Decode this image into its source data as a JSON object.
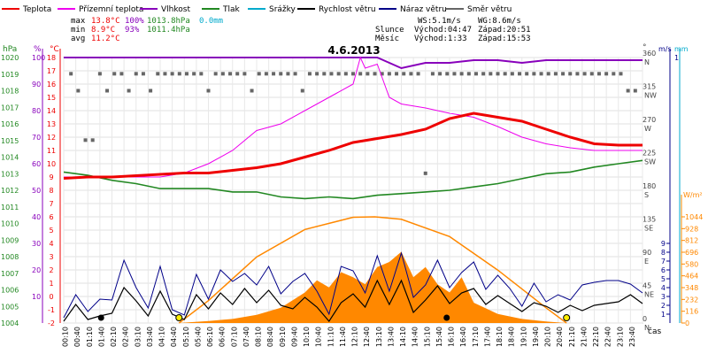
{
  "chart_data": {
    "type": "line",
    "title": "4.6.2013",
    "legend": [
      {
        "label": "Teplota",
        "color": "#ee0000"
      },
      {
        "label": "Přízemní teplota",
        "color": "#ee00ee"
      },
      {
        "label": "Vlhkost",
        "color": "#8800bb"
      },
      {
        "label": "Tlak",
        "color": "#228822"
      },
      {
        "label": "Srážky",
        "color": "#00aacc"
      },
      {
        "label": "Rychlost větru",
        "color": "#000000"
      },
      {
        "label": "Náraz větru",
        "color": "#000088"
      },
      {
        "label": "Směr větru",
        "color": "#666666"
      }
    ],
    "stats": {
      "max": {
        "label": "max",
        "temp": "13.8°C",
        "hum": "100%",
        "press": "1013.8hPa",
        "rain": "0.0mm"
      },
      "min": {
        "label": "min",
        "temp": "8.9°C",
        "hum": "93%",
        "press": "1011.4hPa"
      },
      "avg": {
        "label": "avg",
        "temp": "11.2°C"
      }
    },
    "wind_info": {
      "ws": "WS:5.1m/s",
      "wg": "WG:8.6m/s"
    },
    "sun": {
      "label": "Slunce",
      "rise": "Východ:04:47",
      "set": "Západ:20:51"
    },
    "moon": {
      "label": "Měsíc",
      "rise": "Východ:1:33",
      "set": "Západ:15:53"
    },
    "axes": {
      "hpa": {
        "label": "hPa",
        "ticks": [
          "1004",
          "1005",
          "1006",
          "1007",
          "1008",
          "1009",
          "1010",
          "1011",
          "1012",
          "1013",
          "1014",
          "1015",
          "1016",
          "1017",
          "1018",
          "1019",
          "1020"
        ]
      },
      "pct": {
        "label": "%",
        "ticks": [
          "10",
          "20",
          "30",
          "40",
          "50",
          "60",
          "70",
          "80",
          "90",
          "100"
        ]
      },
      "temp": {
        "label": "°C",
        "ticks": [
          "-2",
          "-1",
          "0",
          "1",
          "2",
          "3",
          "4",
          "5",
          "6",
          "7",
          "8",
          "9",
          "10",
          "11",
          "12",
          "13",
          "14",
          "15",
          "16",
          "17",
          "18"
        ]
      },
      "dir": {
        "label": "°",
        "ticks": [
          [
            "360",
            "N"
          ],
          [
            "315",
            "NW"
          ],
          [
            "270",
            "W"
          ],
          [
            "225",
            "SW"
          ],
          [
            "180",
            "S"
          ],
          [
            "135",
            "SE"
          ],
          [
            "90",
            "E"
          ],
          [
            "45",
            "NE"
          ],
          [
            "0",
            "N"
          ]
        ]
      },
      "ms": {
        "label": "m/s",
        "ticks": [
          "0",
          "1",
          "2",
          "3",
          "4",
          "5",
          "6",
          "7",
          "8",
          "9"
        ],
        "top": "1"
      },
      "mm": {
        "label": "mm"
      },
      "wm2": {
        "label": "W/m²",
        "ticks": [
          "0",
          "116",
          "232",
          "348",
          "464",
          "580",
          "696",
          "812",
          "928",
          "1044"
        ]
      },
      "x_label": "čas",
      "x_ticks": [
        "00:10",
        "00:40",
        "01:10",
        "01:40",
        "02:10",
        "02:40",
        "03:10",
        "03:40",
        "04:10",
        "04:40",
        "05:10",
        "05:40",
        "06:10",
        "06:40",
        "07:10",
        "07:40",
        "08:10",
        "08:40",
        "09:10",
        "09:40",
        "10:10",
        "10:40",
        "11:10",
        "11:40",
        "12:10",
        "12:40",
        "13:10",
        "13:40",
        "14:10",
        "14:40",
        "15:10",
        "15:40",
        "16:10",
        "16:40",
        "17:10",
        "17:40",
        "18:10",
        "18:40",
        "19:10",
        "19:40",
        "20:10",
        "20:40",
        "21:10",
        "21:40",
        "22:10",
        "22:40",
        "23:10",
        "23:40"
      ]
    },
    "series": {
      "temperature": {
        "unit": "°C",
        "x": [
          0,
          1,
          2,
          3,
          4,
          5,
          6,
          7,
          8,
          9,
          10,
          11,
          12,
          13,
          14,
          15,
          16,
          17,
          18,
          19,
          20,
          21,
          22,
          23,
          24
        ],
        "y": [
          8.9,
          9.0,
          9.0,
          9.1,
          9.2,
          9.3,
          9.3,
          9.5,
          9.7,
          10.0,
          10.5,
          11.0,
          11.6,
          11.9,
          12.2,
          12.6,
          13.4,
          13.8,
          13.5,
          13.2,
          12.6,
          12.0,
          11.5,
          11.4,
          11.4
        ]
      },
      "ground_temperature": {
        "unit": "°C",
        "x": [
          0,
          2,
          4,
          5,
          6,
          7,
          8,
          9,
          10,
          11,
          12,
          12.3,
          12.5,
          13,
          13.5,
          14,
          15,
          16,
          17,
          18,
          19,
          20,
          21,
          22,
          23,
          24
        ],
        "y": [
          9.0,
          9.0,
          9.0,
          9.3,
          10.0,
          11.0,
          12.5,
          13.0,
          14.0,
          15.0,
          16.0,
          18.0,
          17.2,
          17.5,
          15.0,
          14.5,
          14.2,
          13.8,
          13.5,
          12.8,
          12.0,
          11.5,
          11.2,
          11.0,
          11.0,
          11.0
        ]
      },
      "humidity": {
        "unit": "%",
        "x": [
          0,
          6,
          12,
          13,
          14,
          15,
          16,
          17,
          18,
          19,
          20,
          21,
          22,
          23,
          24
        ],
        "y": [
          100,
          100,
          100,
          100,
          96,
          98,
          98,
          99,
          99,
          98,
          99,
          99,
          99,
          99,
          99
        ]
      },
      "pressure": {
        "unit": "hPa",
        "x": [
          0,
          1,
          2,
          3,
          4,
          5,
          6,
          7,
          8,
          9,
          10,
          11,
          12,
          13,
          14,
          15,
          16,
          17,
          18,
          19,
          20,
          21,
          22,
          23,
          24
        ],
        "y": [
          1013.1,
          1012.9,
          1012.6,
          1012.4,
          1012.1,
          1012.1,
          1012.1,
          1011.9,
          1011.9,
          1011.6,
          1011.5,
          1011.6,
          1011.5,
          1011.7,
          1011.8,
          1011.9,
          1012.0,
          1012.2,
          1012.4,
          1012.7,
          1013.0,
          1013.1,
          1013.4,
          1013.6,
          1013.8
        ]
      },
      "wind_speed": {
        "unit": "m/s",
        "x": [
          0,
          0.5,
          1,
          1.5,
          2,
          2.5,
          3,
          3.5,
          4,
          4.5,
          5,
          5.5,
          6,
          6.5,
          7,
          7.5,
          8,
          8.5,
          9,
          9.5,
          10,
          10.5,
          11,
          11.5,
          12,
          12.5,
          13,
          13.5,
          14,
          14.5,
          15,
          15.5,
          16,
          16.5,
          17,
          17.5,
          18,
          18.5,
          19,
          19.5,
          20,
          20.5,
          21,
          21.5,
          22,
          22.5,
          23,
          23.5,
          24
        ],
        "y": [
          0.2,
          2.1,
          0.4,
          0.8,
          1.1,
          4.0,
          2.5,
          0.8,
          3.6,
          1.0,
          0.4,
          3.2,
          1.6,
          3.4,
          2.1,
          3.9,
          2.3,
          3.7,
          2.0,
          1.6,
          2.9,
          1.8,
          0.2,
          2.3,
          3.3,
          1.8,
          4.8,
          2.1,
          4.8,
          1.2,
          2.6,
          4.2,
          2.2,
          3.4,
          3.9,
          2.1,
          3.1,
          2.2,
          1.3,
          2.3,
          1.9,
          1.2,
          2.0,
          1.4,
          2.0,
          2.2,
          2.4,
          3.2,
          2.2
        ]
      },
      "wind_gust": {
        "unit": "m/s",
        "x": [
          0,
          0.5,
          1,
          1.5,
          2,
          2.5,
          3,
          3.5,
          4,
          4.5,
          5,
          5.5,
          6,
          6.5,
          7,
          7.5,
          8,
          8.5,
          9,
          9.5,
          10,
          10.5,
          11,
          11.5,
          12,
          12.5,
          13,
          13.5,
          14,
          14.5,
          15,
          15.5,
          16,
          16.5,
          17,
          17.5,
          18,
          18.5,
          19,
          19.5,
          20,
          20.5,
          21,
          21.5,
          22,
          22.5,
          23,
          23.5,
          24
        ],
        "y": [
          0.6,
          3.2,
          1.3,
          2.7,
          2.6,
          7.1,
          4.0,
          1.7,
          6.4,
          1.5,
          0.9,
          5.5,
          2.7,
          6.0,
          4.7,
          5.6,
          4.3,
          6.4,
          3.3,
          4.7,
          5.6,
          3.6,
          1.0,
          6.4,
          5.9,
          3.4,
          7.6,
          3.6,
          7.9,
          2.9,
          4.3,
          7.1,
          4.0,
          5.7,
          6.9,
          3.8,
          5.4,
          3.9,
          1.9,
          4.5,
          2.4,
          3.2,
          2.6,
          4.3,
          4.6,
          4.8,
          4.8,
          4.4,
          3.4
        ]
      },
      "wind_direction": {
        "unit": "°",
        "x": [
          0.3,
          0.6,
          0.9,
          1.2,
          1.5,
          1.8,
          2.1,
          2.4,
          2.7,
          3,
          3.3,
          3.6,
          3.9,
          4.2,
          4.5,
          4.8,
          5.1,
          5.4,
          5.7,
          6,
          6.3,
          6.6,
          6.9,
          7.2,
          7.5,
          7.8,
          8.1,
          8.4,
          8.7,
          9,
          9.3,
          9.6,
          9.9,
          10.2,
          10.5,
          10.8,
          11.1,
          11.4,
          11.7,
          12,
          12.3,
          12.6,
          12.9,
          13.2,
          13.5,
          13.8,
          14.1,
          14.4,
          14.7,
          15,
          15.3,
          15.6,
          15.9,
          16.2,
          16.5,
          16.8,
          17.1,
          17.4,
          17.7,
          18,
          18.3,
          18.6,
          18.9,
          19.2,
          19.5,
          19.8,
          20.1,
          20.4,
          20.7,
          21,
          21.3,
          21.6,
          21.9,
          22.2,
          22.5,
          22.8,
          23.1,
          23.4,
          23.7
        ],
        "y": [
          338,
          315,
          248,
          248,
          338,
          315,
          338,
          338,
          315,
          338,
          338,
          315,
          338,
          338,
          338,
          338,
          338,
          338,
          338,
          315,
          338,
          338,
          338,
          338,
          338,
          315,
          338,
          338,
          338,
          338,
          338,
          338,
          315,
          338,
          338,
          338,
          338,
          338,
          338,
          338,
          338,
          338,
          338,
          338,
          338,
          338,
          338,
          338,
          338,
          203,
          338,
          338,
          338,
          338,
          338,
          338,
          338,
          338,
          338,
          338,
          338,
          338,
          338,
          338,
          338,
          338,
          338,
          338,
          338,
          338,
          338,
          338,
          338,
          338,
          338,
          338,
          338,
          315,
          315
        ]
      },
      "solar_radiation": {
        "unit": "W/m²",
        "x": [
          4.75,
          6,
          7,
          8,
          9,
          10,
          10.5,
          11,
          11.5,
          12,
          12.5,
          13,
          13.5,
          14,
          14.5,
          15,
          15.5,
          16,
          16.5,
          17,
          18,
          19,
          20,
          20.85
        ],
        "y": [
          0,
          20,
          40,
          80,
          150,
          300,
          420,
          350,
          500,
          450,
          380,
          550,
          600,
          700,
          450,
          550,
          380,
          300,
          450,
          200,
          90,
          40,
          15,
          0
        ]
      },
      "theoretical_radiation": {
        "unit": "W/m²",
        "x": [
          4.78,
          6,
          8,
          10,
          12,
          12.9,
          14,
          16,
          18,
          20,
          20.85
        ],
        "y": [
          0,
          220,
          650,
          920,
          1040,
          1044,
          1020,
          850,
          520,
          150,
          0
        ]
      }
    }
  }
}
